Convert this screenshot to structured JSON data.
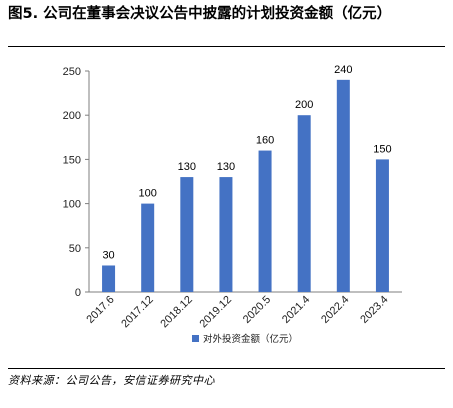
{
  "figure": {
    "title": "图5. 公司在董事会决议公告中披露的计划投资金额（亿元）",
    "source": "资料来源：公司公告，安信证券研究中心"
  },
  "chart_data": {
    "type": "bar",
    "categories": [
      "2017.6",
      "2017.12",
      "2018.12",
      "2019.12",
      "2020.5",
      "2021.4",
      "2022.4",
      "2023.4"
    ],
    "series": [
      {
        "name": "对外投资金额（亿元）",
        "values": [
          30,
          100,
          130,
          130,
          160,
          200,
          240,
          150
        ],
        "color": "#4472c4"
      }
    ],
    "yticks": [
      0,
      50,
      100,
      150,
      200,
      250
    ],
    "ylim": [
      0,
      250
    ],
    "xlabel": "",
    "ylabel": "",
    "grid": false,
    "legend_position": "bottom-center",
    "data_labels": true
  }
}
